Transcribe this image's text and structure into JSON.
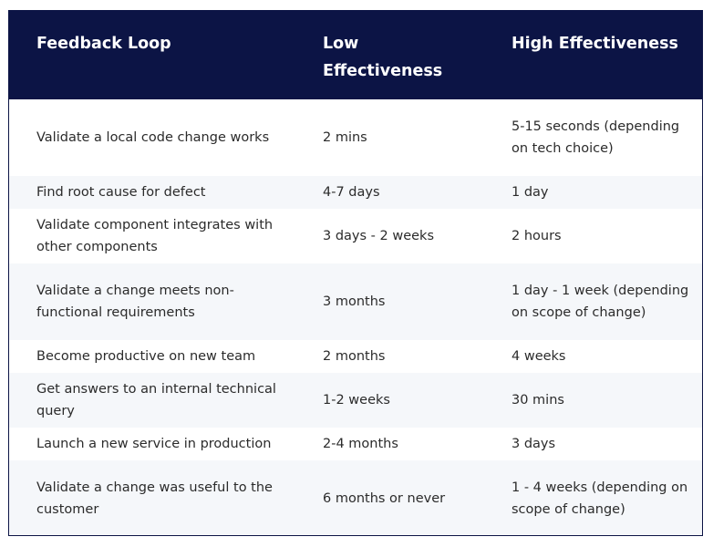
{
  "header": {
    "col1": "Feedback Loop",
    "col2": "Low Effectiveness",
    "col3": "High Effectiveness"
  },
  "rows": [
    {
      "loop": "Validate a local code change works",
      "low": "2 mins",
      "high": "5-15 seconds (depending on tech choice)"
    },
    {
      "loop": "Find root cause for defect",
      "low": "4-7 days",
      "high": "1 day"
    },
    {
      "loop": "Validate component integrates with other components",
      "low": "3 days - 2 weeks",
      "high": "2 hours"
    },
    {
      "loop": "Validate a change meets non-functional requirements",
      "low": "3 months",
      "high": "1 day - 1 week (depending on scope of change)"
    },
    {
      "loop": "Become productive on new team",
      "low": "2 months",
      "high": "4 weeks"
    },
    {
      "loop": "Get answers to an internal technical query",
      "low": "1-2 weeks",
      "high": "30 mins"
    },
    {
      "loop": "Launch a new service in production",
      "low": "2-4 months",
      "high": "3 days"
    },
    {
      "loop": "Validate a change was useful to the customer",
      "low": "6 months or never",
      "high": "1 - 4 weeks (depending on scope of change)"
    }
  ]
}
